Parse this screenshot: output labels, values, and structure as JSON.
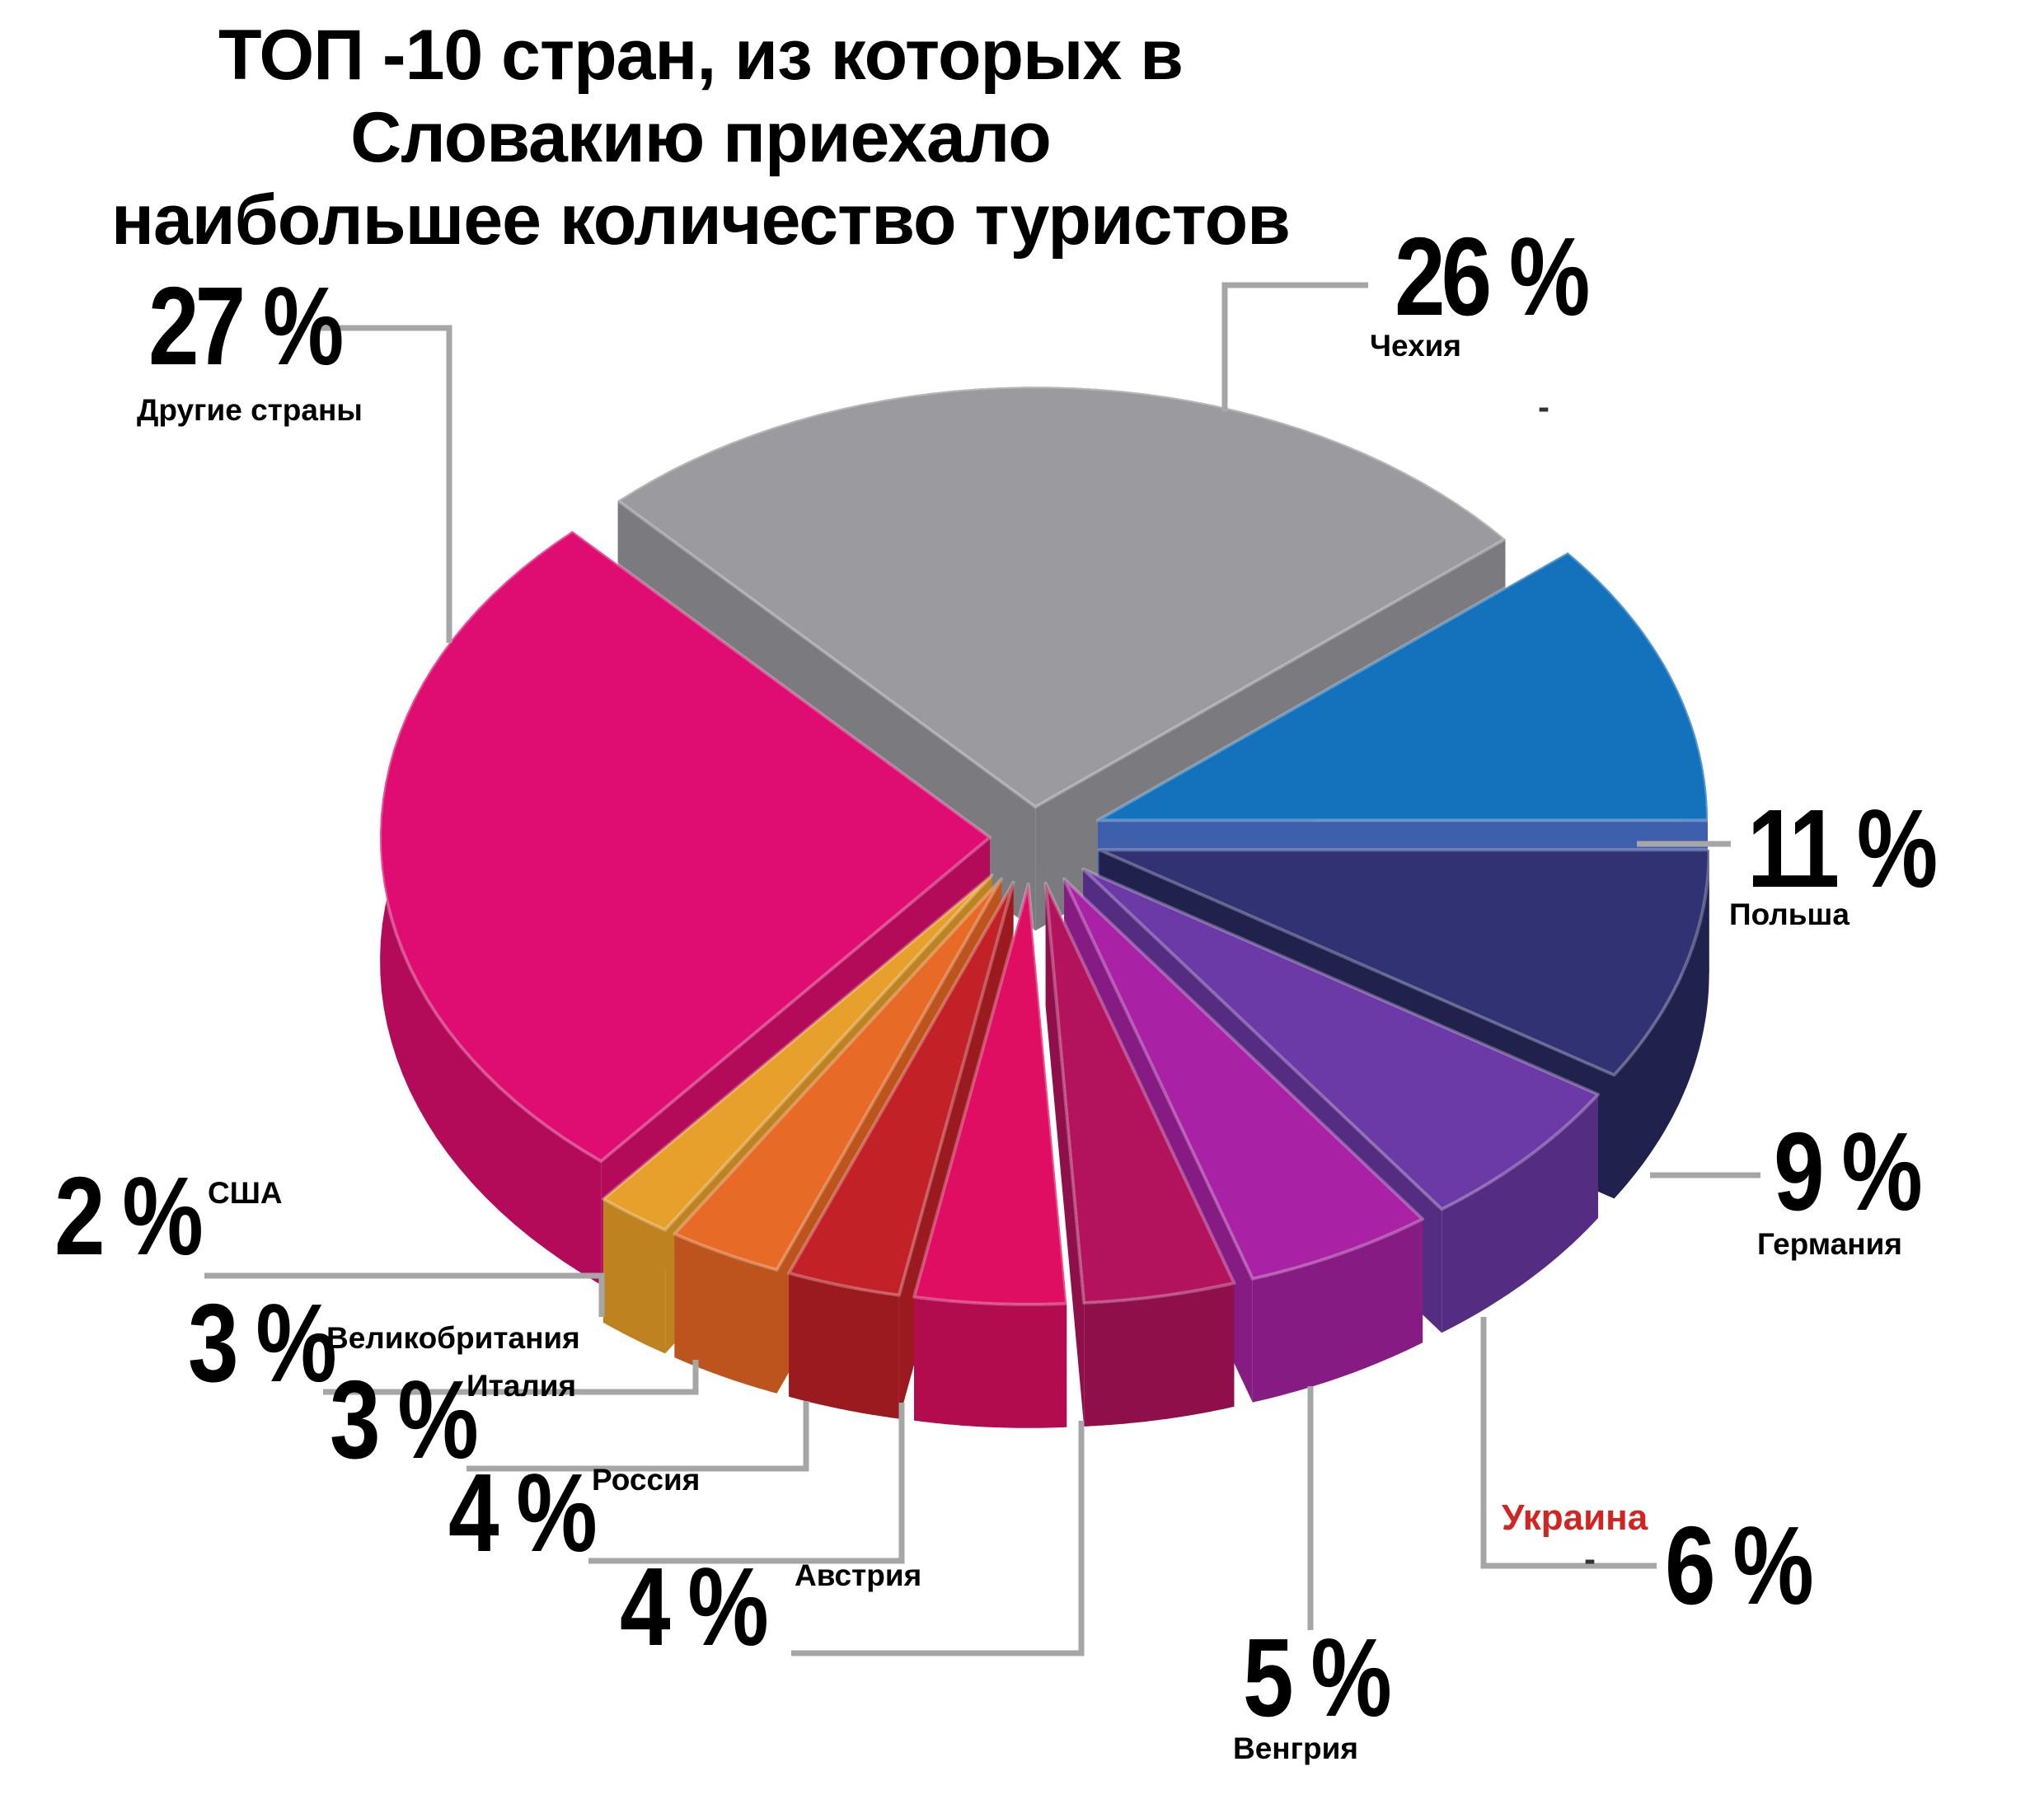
{
  "title": {
    "line1": "ТОП -10  стран, из которых в Словакию приехало",
    "line2": "наибольшее количество туристов"
  },
  "colors": {
    "leader_line": "#A6A6A6",
    "ukraine_label": "#D22420",
    "text": "#000000",
    "background": "#FFFFFF"
  },
  "chart_data": {
    "type": "pie",
    "variant": "3d-exploded",
    "title": "ТОП -10 стран, из которых в Словакию приехало наибольшее количество туристов",
    "unit": "%",
    "order": "clockwise",
    "start_angle_deg": 133.2,
    "categories": [
      "Чехия",
      "Польша",
      "Германия",
      "Украина",
      "Венгрия",
      "Австрия",
      "Россия",
      "Италия",
      "Великобритания",
      "США",
      "Другие страны"
    ],
    "values": [
      26,
      11,
      9,
      6,
      5,
      4,
      4,
      3,
      3,
      2,
      27
    ],
    "slices": [
      {
        "key": "cz",
        "label": "Чехия",
        "value": 26,
        "color": "#9B9A9F",
        "side": "#7B7A7F",
        "explode": "big"
      },
      {
        "key": "pl",
        "label": "Польша",
        "value": 11,
        "color": "#1471BC",
        "side": "#3E5FAC",
        "explode": "fan"
      },
      {
        "key": "de",
        "label": "Германия",
        "value": 9,
        "color": "#303273",
        "side": "#20224D",
        "explode": "fan"
      },
      {
        "key": "ua",
        "label": "Украина",
        "value": 6,
        "color": "#6C3AA6",
        "side": "#542D82",
        "explode": "fan"
      },
      {
        "key": "hu",
        "label": "Венгрия",
        "value": 5,
        "color": "#A922A5",
        "side": "#871B84",
        "explode": "fan"
      },
      {
        "key": "at",
        "label": "Австрия",
        "value": 4,
        "color": "#B3135D",
        "side": "#8E0F4A",
        "explode": "fan"
      },
      {
        "key": "ru",
        "label": "Россия",
        "value": 4,
        "color": "#DF0E62",
        "side": "#B20B4E",
        "explode": "fan"
      },
      {
        "key": "it",
        "label": "Италия",
        "value": 3,
        "color": "#C22127",
        "side": "#9B1A1F",
        "explode": "fan"
      },
      {
        "key": "gb",
        "label": "Великобритания",
        "value": 3,
        "color": "#E76A26",
        "side": "#BE541D",
        "explode": "fan"
      },
      {
        "key": "us",
        "label": "США",
        "value": 2,
        "color": "#E7A02C",
        "side": "#BF8221",
        "explode": "fan"
      },
      {
        "key": "other",
        "label": "Другие страны",
        "value": 27,
        "color": "#DF0D71",
        "side": "#B30A5A",
        "explode": "big"
      }
    ]
  },
  "callouts": {
    "other": {
      "pct": "27 %",
      "label": "Другие страны"
    },
    "cz": {
      "pct": "26 %",
      "label": "Чехия"
    },
    "pl": {
      "pct": "11 %",
      "label": "Польша"
    },
    "de": {
      "pct": "9 %",
      "label": "Германия"
    },
    "ua": {
      "pct": "6 %",
      "label": "Украина"
    },
    "hu": {
      "pct": "5 %",
      "label": "Венгрия"
    },
    "at": {
      "pct": "4 %",
      "label": "Австрия"
    },
    "ru": {
      "pct": "4 %",
      "label": "Россия"
    },
    "it": {
      "pct": "3 %",
      "label": "Италия"
    },
    "gb": {
      "pct": "3 %",
      "label": "Великобритания"
    },
    "us": {
      "pct": "2 %",
      "label": "США"
    }
  },
  "artifacts": {
    "dash1": "-",
    "dash2": "-"
  }
}
